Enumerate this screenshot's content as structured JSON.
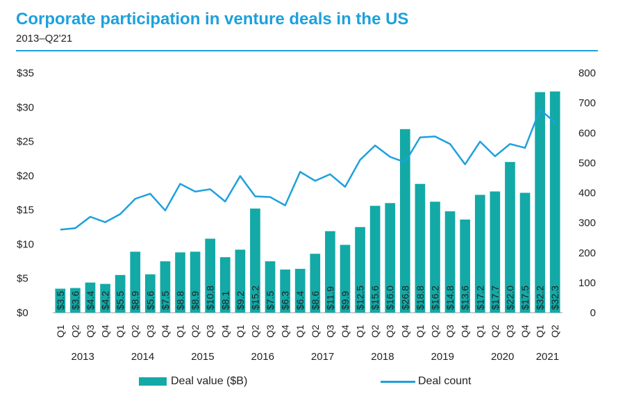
{
  "title": "Corporate participation in venture deals in the US",
  "subtitle": "2013–Q2'21",
  "colors": {
    "bar": "#13a9a6",
    "line": "#1ea0dc",
    "accent": "#1ea0dc"
  },
  "chart_data": {
    "type": "bar",
    "title": "Corporate participation in venture deals in the US",
    "subtitle": "2013–Q2'21",
    "quarters": [
      "Q1",
      "Q2",
      "Q3",
      "Q4",
      "Q1",
      "Q2",
      "Q3",
      "Q4",
      "Q1",
      "Q2",
      "Q3",
      "Q4",
      "Q1",
      "Q2",
      "Q3",
      "Q4",
      "Q1",
      "Q2",
      "Q3",
      "Q4",
      "Q1",
      "Q2",
      "Q3",
      "Q4",
      "Q1",
      "Q2",
      "Q3",
      "Q4",
      "Q1",
      "Q2",
      "Q3",
      "Q4",
      "Q1",
      "Q2"
    ],
    "years": [
      {
        "label": "2013",
        "start": 0,
        "count": 4
      },
      {
        "label": "2014",
        "start": 4,
        "count": 4
      },
      {
        "label": "2015",
        "start": 8,
        "count": 4
      },
      {
        "label": "2016",
        "start": 12,
        "count": 4
      },
      {
        "label": "2017",
        "start": 16,
        "count": 4
      },
      {
        "label": "2018",
        "start": 20,
        "count": 4
      },
      {
        "label": "2019",
        "start": 24,
        "count": 4
      },
      {
        "label": "2020",
        "start": 28,
        "count": 4
      },
      {
        "label": "2021",
        "start": 32,
        "count": 2
      }
    ],
    "series": [
      {
        "name": "Deal value ($B)",
        "type": "bar",
        "axis": "left",
        "values": [
          3.5,
          3.6,
          4.4,
          4.2,
          5.5,
          8.9,
          5.6,
          7.5,
          8.8,
          8.9,
          10.8,
          8.1,
          9.2,
          15.2,
          7.5,
          6.3,
          6.4,
          8.6,
          11.9,
          9.9,
          12.5,
          15.6,
          16.0,
          26.8,
          18.8,
          16.2,
          14.8,
          13.6,
          17.2,
          17.7,
          22.0,
          17.5,
          32.2,
          32.3
        ],
        "labels": [
          "$3.5",
          "$3.6",
          "$4.4",
          "$4.2",
          "$5.5",
          "$8.9",
          "$5.6",
          "$7.5",
          "$8.8",
          "$8.9",
          "$10.8",
          "$8.1",
          "$9.2",
          "$15.2",
          "$7.5",
          "$6.3",
          "$6.4",
          "$8.6",
          "$11.9",
          "$9.9",
          "$12.5",
          "$15.6",
          "$16.0",
          "$26.8",
          "$18.8",
          "$16.2",
          "$14.8",
          "$13.6",
          "$17.2",
          "$17.7",
          "$22.0",
          "$17.5",
          "$32.2",
          "$32.3"
        ]
      },
      {
        "name": "Deal count",
        "type": "line",
        "axis": "right",
        "values": [
          277,
          282,
          320,
          302,
          329,
          380,
          397,
          341,
          430,
          404,
          412,
          371,
          456,
          388,
          386,
          358,
          470,
          440,
          462,
          420,
          510,
          558,
          520,
          502,
          585,
          588,
          563,
          495,
          571,
          522,
          563,
          550,
          678,
          635
        ]
      }
    ],
    "y_left": {
      "min": 0,
      "max": 35,
      "ticks": [
        "$0",
        "$5",
        "$10",
        "$15",
        "$20",
        "$25",
        "$30",
        "$35"
      ]
    },
    "y_right": {
      "min": 0,
      "max": 800,
      "ticks": [
        "0",
        "100",
        "200",
        "300",
        "400",
        "500",
        "600",
        "700",
        "800"
      ]
    },
    "legend": [
      {
        "label": "Deal value ($B)",
        "kind": "bar"
      },
      {
        "label": "Deal count",
        "kind": "line"
      }
    ]
  }
}
